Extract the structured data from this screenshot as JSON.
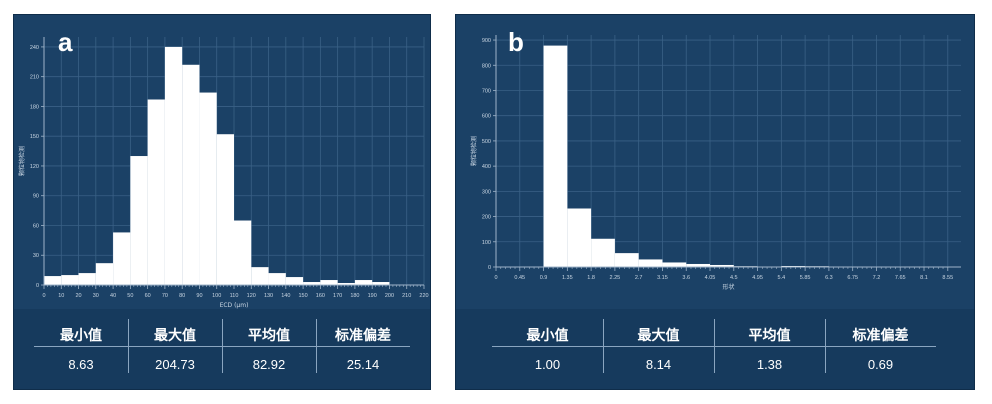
{
  "panels": [
    {
      "letter": "a",
      "stats_labels": [
        "最小值",
        "最大值",
        "平均值",
        "标准偏差"
      ],
      "stats_values": [
        "8.63",
        "204.73",
        "82.92",
        "25.14"
      ]
    },
    {
      "letter": "b",
      "stats_labels": [
        "最小值",
        "最大值",
        "平均值",
        "标准偏差"
      ],
      "stats_values": [
        "1.00",
        "8.14",
        "1.38",
        "0.69"
      ]
    }
  ],
  "chart_data": [
    {
      "type": "bar",
      "xlabel": "ECD (μm)",
      "ylabel": "颗粒物检测",
      "xlim": [
        0,
        220
      ],
      "ylim": [
        0,
        250
      ],
      "xticks": [
        0,
        10,
        20,
        30,
        40,
        50,
        60,
        70,
        80,
        90,
        100,
        110,
        120,
        130,
        140,
        150,
        160,
        170,
        180,
        190,
        200,
        210,
        220
      ],
      "yticks": [
        0,
        30,
        60,
        90,
        120,
        150,
        180,
        210,
        240
      ],
      "bin_width": 10,
      "bin_starts": [
        0,
        10,
        20,
        30,
        40,
        50,
        60,
        70,
        80,
        90,
        100,
        110,
        120,
        130,
        140,
        150,
        160,
        170,
        180,
        190
      ],
      "values": [
        9,
        10,
        12,
        22,
        53,
        130,
        187,
        240,
        222,
        194,
        152,
        65,
        18,
        12,
        8,
        3,
        5,
        2,
        5,
        3
      ],
      "grid": true,
      "colors": {
        "bar": "#ffffff",
        "background": "#1b4166",
        "grid": "#3a6186",
        "text": "#c9d6e3"
      }
    },
    {
      "type": "bar",
      "xlabel": "形状",
      "ylabel": "颗粒物检测",
      "xlim": [
        0,
        8.8
      ],
      "ylim": [
        0,
        920
      ],
      "xticks": [
        0,
        0.45,
        0.9,
        1.35,
        1.8,
        2.25,
        2.7,
        3.15,
        3.6,
        4.05,
        4.5,
        4.95,
        5.4,
        5.85,
        6.3,
        6.75,
        7.2,
        7.65,
        8.1,
        8.55
      ],
      "xtick_labels": [
        "0",
        "0.45",
        "0.9",
        "1.35",
        "1.8",
        "2.25",
        "2.7",
        "3.15",
        "3.6",
        "4.05",
        "4.5",
        "4.95",
        "5.4",
        "5.85",
        "6.3",
        "6.75",
        "7.2",
        "7.65",
        "8.1",
        "8.55"
      ],
      "yticks": [
        0,
        100,
        200,
        300,
        400,
        500,
        600,
        700,
        800,
        900
      ],
      "bin_width": 0.45,
      "bin_starts": [
        0.9,
        1.35,
        1.8,
        2.25,
        2.7,
        3.15,
        3.6,
        4.05,
        4.5,
        4.95,
        5.4,
        5.85,
        6.3,
        6.75,
        7.2,
        7.65,
        8.1
      ],
      "values": [
        878,
        232,
        112,
        55,
        30,
        18,
        12,
        8,
        3,
        2,
        4,
        3,
        2,
        1,
        1,
        2,
        1
      ],
      "grid": true,
      "colors": {
        "bar": "#ffffff",
        "background": "#1b4166",
        "grid": "#3a6186",
        "text": "#c9d6e3"
      }
    }
  ]
}
